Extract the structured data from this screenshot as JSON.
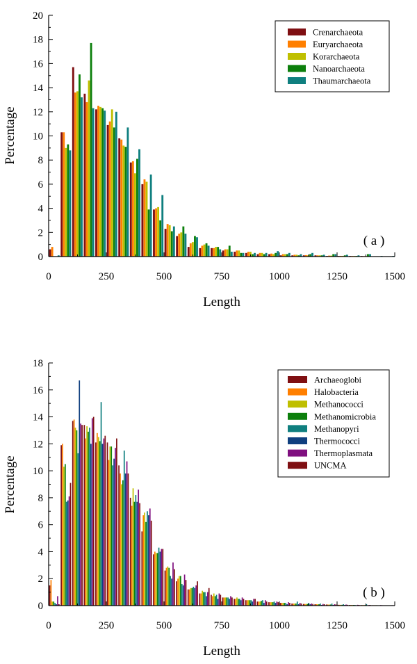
{
  "chart_data": [
    {
      "type": "bar",
      "panel_label": "( a )",
      "xlabel": "Length",
      "ylabel": "Percentage",
      "xlim": [
        0,
        1500
      ],
      "ylim": [
        0,
        20
      ],
      "x_ticks": [
        "0",
        "250",
        "500",
        "750",
        "1000",
        "1250",
        "1500"
      ],
      "y_ticks": [
        "0",
        "2",
        "4",
        "6",
        "8",
        "10",
        "12",
        "14",
        "16",
        "18",
        "20"
      ],
      "legend_position": "top-right",
      "bin_width": 50,
      "bins": [
        25,
        75,
        125,
        175,
        225,
        275,
        325,
        375,
        425,
        475,
        525,
        575,
        625,
        675,
        725,
        775,
        825,
        875,
        925,
        975,
        1025,
        1075,
        1125,
        1175,
        1225,
        1275,
        1325,
        1375,
        1425,
        1475
      ],
      "series": [
        {
          "name": "Crenarchaeota",
          "color": "#7f0f12",
          "values": [
            0.6,
            10.3,
            15.7,
            13.5,
            12.2,
            10.9,
            9.8,
            7.8,
            6.0,
            3.9,
            2.3,
            1.7,
            0.8,
            0.7,
            0.7,
            0.5,
            0.4,
            0.3,
            0.2,
            0.2,
            0.1,
            0.1,
            0.1,
            0.1,
            0.05,
            0.05,
            0.05,
            0.05,
            0.02,
            0.02
          ]
        },
        {
          "name": "Euryarchaeota",
          "color": "#ff7f00",
          "values": [
            0.8,
            10.3,
            13.6,
            12.8,
            12.5,
            11.2,
            9.7,
            7.9,
            6.4,
            4.0,
            2.7,
            1.9,
            1.1,
            0.9,
            0.7,
            0.6,
            0.5,
            0.4,
            0.3,
            0.25,
            0.2,
            0.15,
            0.12,
            0.1,
            0.08,
            0.06,
            0.05,
            0.04,
            0.03,
            0.02
          ]
        },
        {
          "name": "Korarchaeota",
          "color": "#bfbf00",
          "values": [
            0.0,
            9.0,
            13.7,
            14.6,
            12.4,
            12.2,
            9.2,
            6.9,
            6.2,
            4.1,
            2.6,
            2.0,
            1.2,
            1.0,
            0.8,
            0.6,
            0.5,
            0.4,
            0.3,
            0.2,
            0.2,
            0.15,
            0.1,
            0.1,
            0.08,
            0.06,
            0.05,
            0.04,
            0.03,
            0.02
          ]
        },
        {
          "name": "Nanoarchaeota",
          "color": "#0c7f0c",
          "values": [
            0.0,
            9.3,
            15.1,
            17.7,
            12.3,
            10.7,
            9.1,
            8.1,
            3.9,
            3.0,
            2.1,
            2.5,
            1.7,
            1.1,
            0.8,
            0.9,
            0.3,
            0.2,
            0.2,
            0.3,
            0.2,
            0.1,
            0.2,
            0.1,
            0.2,
            0.1,
            0.05,
            0.2,
            0.02,
            0.02
          ]
        },
        {
          "name": "Thaumarchaeota",
          "color": "#0f7f7f",
          "values": [
            0.1,
            8.8,
            13.2,
            12.3,
            12.1,
            12.0,
            10.7,
            8.9,
            6.8,
            5.1,
            2.5,
            1.9,
            1.6,
            0.9,
            0.6,
            0.4,
            0.3,
            0.3,
            0.3,
            0.45,
            0.3,
            0.2,
            0.3,
            0.15,
            0.2,
            0.15,
            0.1,
            0.2,
            0.05,
            0.05
          ]
        }
      ]
    },
    {
      "type": "bar",
      "panel_label": "( b )",
      "xlabel": "Length",
      "ylabel": "Percentage",
      "xlim": [
        0,
        1500
      ],
      "ylim": [
        0,
        18
      ],
      "x_ticks": [
        "0",
        "250",
        "500",
        "750",
        "1000",
        "1250",
        "1500"
      ],
      "y_ticks": [
        "0",
        "2",
        "4",
        "6",
        "8",
        "10",
        "12",
        "14",
        "16",
        "18"
      ],
      "legend_position": "top-right",
      "bin_width": 50,
      "bins": [
        25,
        75,
        125,
        175,
        225,
        275,
        325,
        375,
        425,
        475,
        525,
        575,
        625,
        675,
        725,
        775,
        825,
        875,
        925,
        975,
        1025,
        1075,
        1125,
        1175,
        1225,
        1275,
        1325,
        1375,
        1425,
        1475
      ],
      "series": [
        {
          "name": "Archaeoglobi",
          "color": "#7f0f12",
          "values": [
            1.5,
            11.9,
            13.7,
            13.4,
            12.1,
            12.1,
            10.4,
            8.0,
            5.5,
            3.8,
            2.6,
            1.8,
            1.2,
            0.9,
            0.8,
            0.6,
            0.5,
            0.4,
            0.3,
            0.25,
            0.2,
            0.15,
            0.12,
            0.1,
            0.08,
            0.06,
            0.05,
            0.04,
            0.03,
            0.02
          ]
        },
        {
          "name": "Halobacteria",
          "color": "#ff7f00",
          "values": [
            1.9,
            12.0,
            13.8,
            12.4,
            12.8,
            10.8,
            9.8,
            7.4,
            6.7,
            4.0,
            2.8,
            2.0,
            1.2,
            0.9,
            0.7,
            0.6,
            0.5,
            0.4,
            0.3,
            0.25,
            0.2,
            0.15,
            0.12,
            0.1,
            0.08,
            0.06,
            0.05,
            0.04,
            0.03,
            0.02
          ]
        },
        {
          "name": "Methanococci",
          "color": "#bfbf00",
          "values": [
            0.3,
            10.3,
            13.2,
            13.3,
            12.5,
            11.8,
            9.0,
            8.7,
            6.9,
            3.9,
            2.9,
            2.2,
            1.3,
            1.1,
            0.9,
            0.6,
            0.6,
            0.4,
            0.3,
            0.25,
            0.2,
            0.15,
            0.12,
            0.1,
            0.08,
            0.06,
            0.05,
            0.04,
            0.03,
            0.02
          ]
        },
        {
          "name": "Methanomicrobia",
          "color": "#0c7f0c",
          "values": [
            0.3,
            10.5,
            13.0,
            12.9,
            12.2,
            11.8,
            9.3,
            7.7,
            6.2,
            3.9,
            2.8,
            2.2,
            1.3,
            1.0,
            0.7,
            0.6,
            0.5,
            0.4,
            0.35,
            0.25,
            0.2,
            0.15,
            0.12,
            0.1,
            0.08,
            0.06,
            0.05,
            0.04,
            0.03,
            0.02
          ]
        },
        {
          "name": "Methanopyri",
          "color": "#0f7f7f",
          "values": [
            0.2,
            7.7,
            11.3,
            13.2,
            15.1,
            10.4,
            11.5,
            8.2,
            7.0,
            4.3,
            2.2,
            1.6,
            1.4,
            1.0,
            0.8,
            0.6,
            0.5,
            0.4,
            0.4,
            0.3,
            0.2,
            0.3,
            0.2,
            0.15,
            0.15,
            0.1,
            0.05,
            0.1,
            0.02,
            0.02
          ]
        },
        {
          "name": "Thermococci",
          "color": "#0f3f7f",
          "values": [
            0.1,
            7.8,
            16.7,
            12.0,
            12.0,
            10.9,
            9.8,
            7.7,
            6.7,
            4.0,
            2.0,
            1.5,
            1.3,
            0.7,
            0.5,
            0.5,
            0.4,
            0.3,
            0.2,
            0.2,
            0.1,
            0.1,
            0.1,
            0.05,
            0.05,
            0.05,
            0.02,
            0.02,
            0.02,
            0.02
          ]
        },
        {
          "name": "Thermoplasmata",
          "color": "#7f0f7f",
          "values": [
            0.7,
            8.1,
            13.5,
            13.9,
            12.4,
            11.7,
            10.7,
            8.6,
            7.2,
            4.2,
            3.2,
            2.3,
            1.5,
            1.0,
            0.9,
            0.7,
            0.6,
            0.5,
            0.4,
            0.3,
            0.25,
            0.2,
            0.15,
            0.12,
            0.1,
            0.08,
            0.06,
            0.05,
            0.04,
            0.03
          ]
        },
        {
          "name": "UNCMA",
          "color": "#7f0f12",
          "values": [
            0.1,
            9.1,
            13.4,
            14.0,
            12.6,
            12.4,
            9.8,
            7.6,
            6.3,
            4.2,
            2.7,
            1.9,
            1.8,
            1.3,
            0.8,
            0.6,
            0.5,
            0.5,
            0.3,
            0.25,
            0.2,
            0.15,
            0.12,
            0.1,
            0.08,
            0.06,
            0.05,
            0.04,
            0.03,
            0.02
          ]
        }
      ]
    }
  ]
}
